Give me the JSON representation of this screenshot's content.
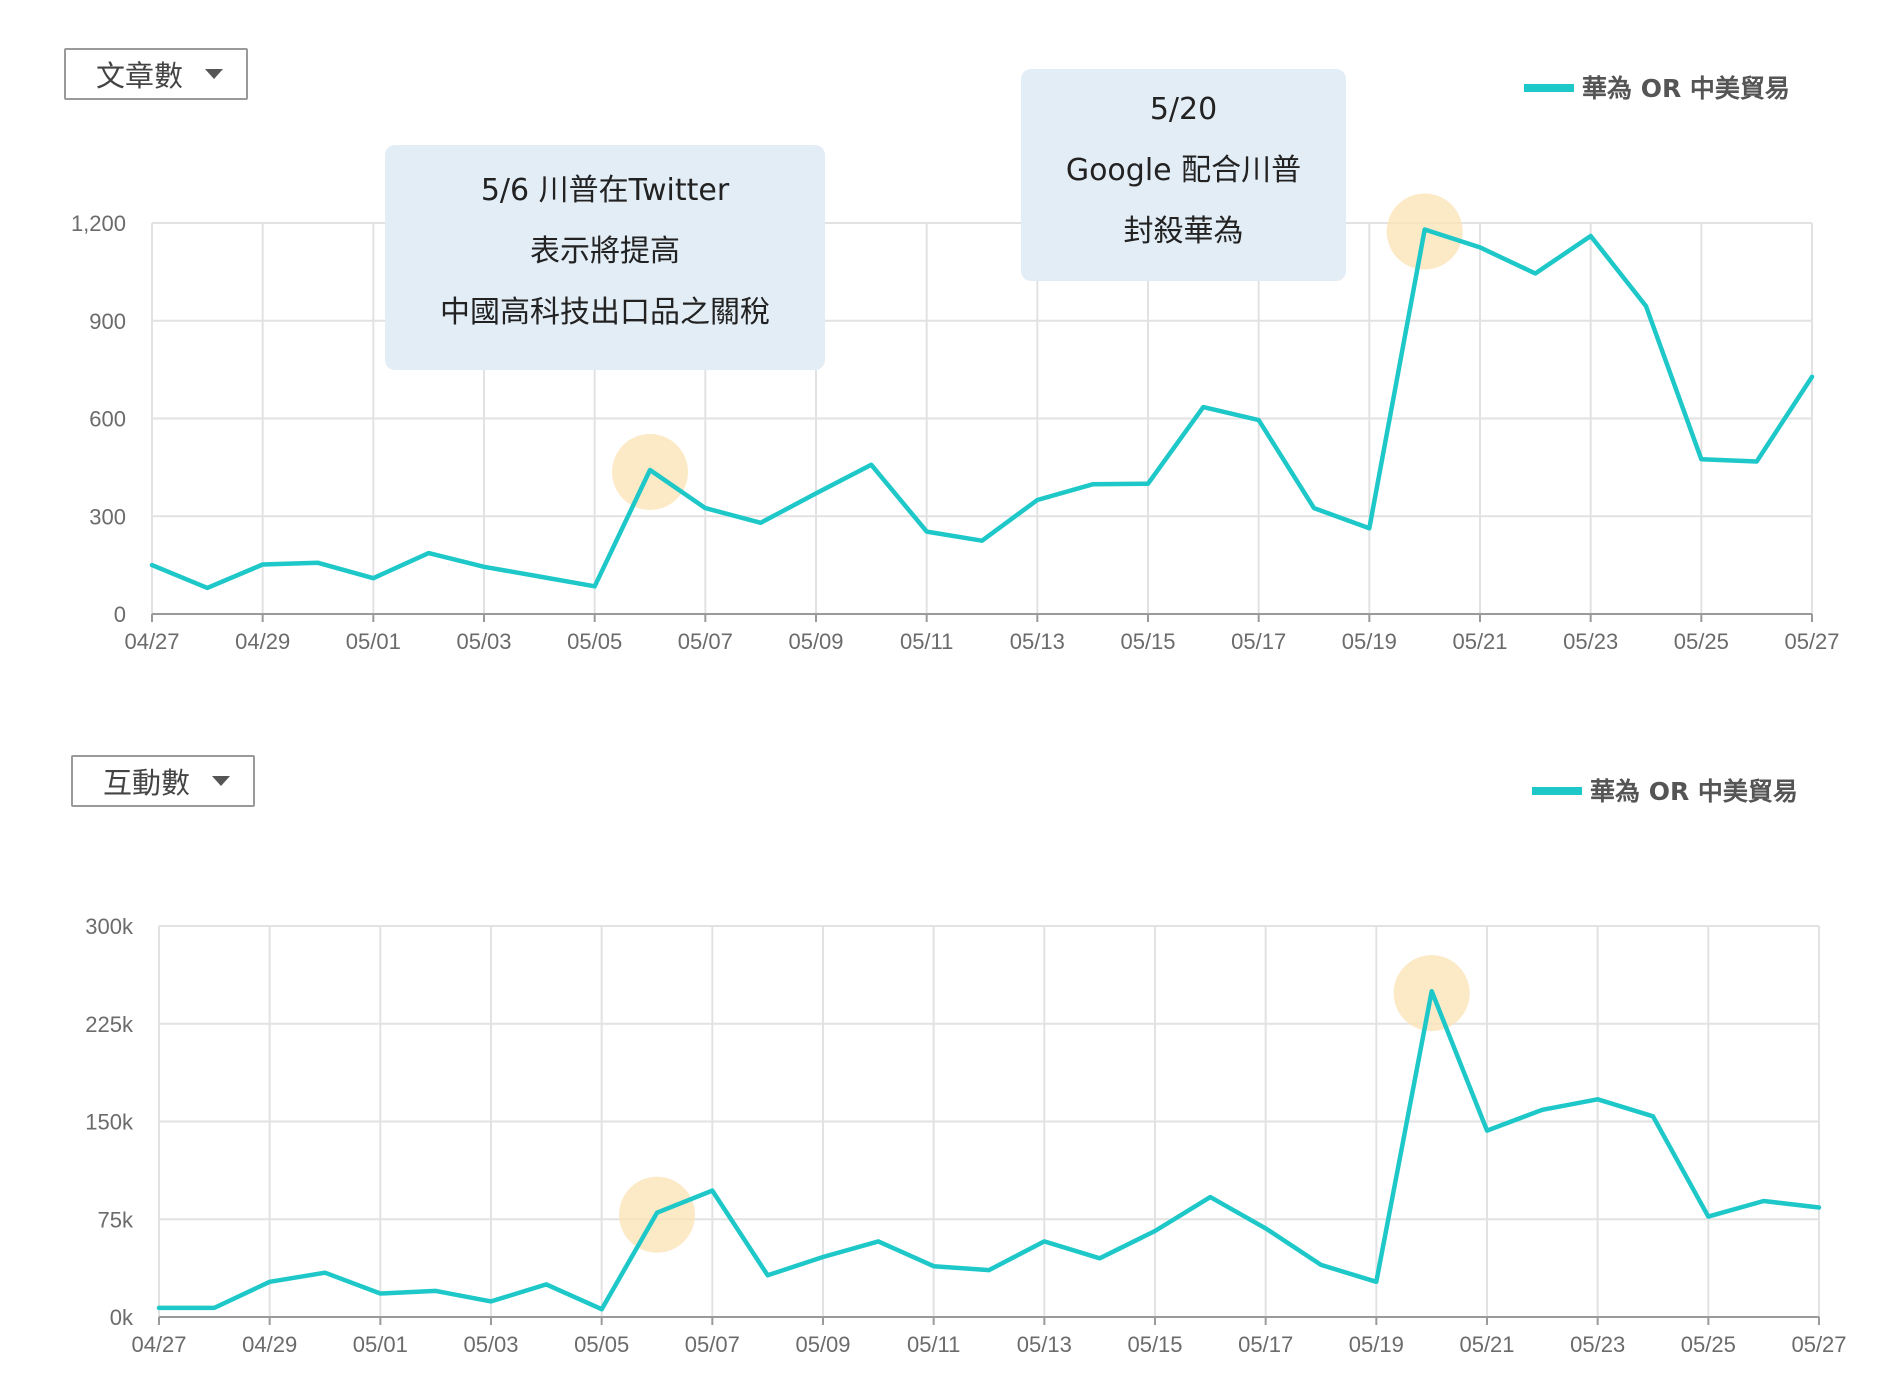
{
  "charts": [
    {
      "metric_label": "文章數",
      "legend_label": "華為 OR 中美貿易",
      "annotations": [
        {
          "lines": [
            "5/6 川普在Twitter",
            "表示將提高",
            "中國高科技出口品之關稅"
          ]
        },
        {
          "lines": [
            "5/20",
            "Google 配合川普",
            "封殺華為"
          ]
        }
      ]
    },
    {
      "metric_label": "互動數",
      "legend_label": "華為 OR 中美貿易",
      "annotations": []
    }
  ],
  "colors": {
    "series": "#1ec8c8",
    "highlight": "#fbe3b8",
    "annotation_bg": "#e3edf6",
    "grid": "#e2e2e2"
  },
  "chart_data": [
    {
      "type": "line",
      "title": "",
      "x": [
        "04/27",
        "04/28",
        "04/29",
        "04/30",
        "05/01",
        "05/02",
        "05/03",
        "05/04",
        "05/05",
        "05/06",
        "05/07",
        "05/08",
        "05/09",
        "05/10",
        "05/11",
        "05/12",
        "05/13",
        "05/14",
        "05/15",
        "05/16",
        "05/17",
        "05/18",
        "05/19",
        "05/20",
        "05/21",
        "05/22",
        "05/23",
        "05/24",
        "05/25",
        "05/26",
        "05/27"
      ],
      "x_tick_labels": [
        "04/27",
        "04/29",
        "05/01",
        "05/03",
        "05/05",
        "05/07",
        "05/09",
        "05/11",
        "05/13",
        "05/15",
        "05/17",
        "05/19",
        "05/21",
        "05/23",
        "05/25",
        "05/27"
      ],
      "series": [
        {
          "name": "華為 OR 中美貿易",
          "values": [
            150,
            80,
            152,
            157,
            110,
            187,
            145,
            115,
            85,
            442,
            325,
            280,
            370,
            458,
            253,
            225,
            350,
            398,
            400,
            635,
            595,
            325,
            263,
            1180,
            1125,
            1045,
            1160,
            945,
            475,
            468,
            728
          ]
        }
      ],
      "highlights": [
        "05/06",
        "05/20"
      ],
      "ylim": [
        0,
        1200
      ],
      "y_ticks": [
        0,
        300,
        600,
        900,
        1200
      ],
      "y_tick_labels": [
        "0",
        "300",
        "600",
        "900",
        "1,200"
      ],
      "grid": true,
      "legend_position": "top-right"
    },
    {
      "type": "line",
      "title": "",
      "x": [
        "04/27",
        "04/28",
        "04/29",
        "04/30",
        "05/01",
        "05/02",
        "05/03",
        "05/04",
        "05/05",
        "05/06",
        "05/07",
        "05/08",
        "05/09",
        "05/10",
        "05/11",
        "05/12",
        "05/13",
        "05/14",
        "05/15",
        "05/16",
        "05/17",
        "05/18",
        "05/19",
        "05/20",
        "05/21",
        "05/22",
        "05/23",
        "05/24",
        "05/25",
        "05/26",
        "05/27"
      ],
      "x_tick_labels": [
        "04/27",
        "04/29",
        "05/01",
        "05/03",
        "05/05",
        "05/07",
        "05/09",
        "05/11",
        "05/13",
        "05/15",
        "05/17",
        "05/19",
        "05/21",
        "05/23",
        "05/25",
        "05/27"
      ],
      "series": [
        {
          "name": "華為 OR 中美貿易",
          "values": [
            7000,
            7000,
            27000,
            34000,
            18000,
            20000,
            12000,
            25000,
            6000,
            80000,
            97000,
            32000,
            46000,
            58000,
            39000,
            36000,
            58000,
            45000,
            66000,
            92000,
            68000,
            40000,
            27000,
            250000,
            143000,
            159000,
            167000,
            154000,
            77000,
            89000,
            84000
          ]
        }
      ],
      "highlights": [
        "05/06",
        "05/20"
      ],
      "ylim": [
        0,
        300000
      ],
      "y_ticks": [
        0,
        75000,
        150000,
        225000,
        300000
      ],
      "y_tick_labels": [
        "0k",
        "75k",
        "150k",
        "225k",
        "300k"
      ],
      "grid": true,
      "legend_position": "top-right"
    }
  ]
}
